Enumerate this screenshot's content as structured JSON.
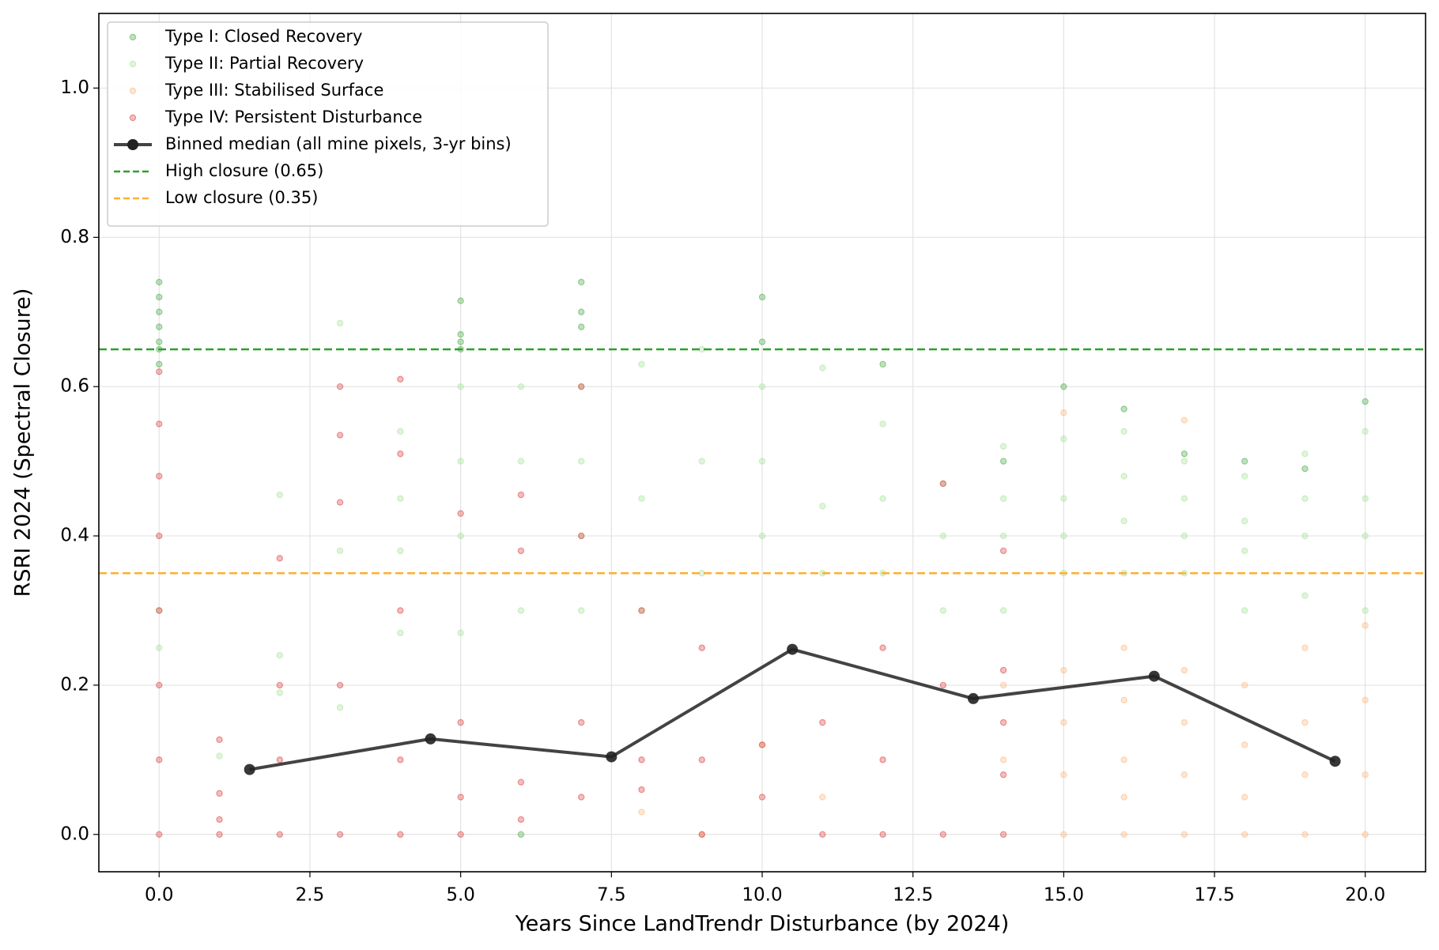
{
  "chart_data": {
    "type": "scatter",
    "xlabel": "Years Since LandTrendr Disturbance (by 2024)",
    "ylabel": "RSRI 2024 (Spectral Closure)",
    "xlim": [
      -1,
      21
    ],
    "ylim": [
      -0.05,
      1.1
    ],
    "xticks": [
      {
        "value": 0,
        "label": "0.0"
      },
      2.5,
      {
        "value": 5,
        "label": "5.0"
      },
      7.5,
      {
        "value": 10,
        "label": "10.0"
      },
      12.5,
      {
        "value": 15,
        "label": "15.0"
      },
      17.5,
      {
        "value": 20,
        "label": "20.0"
      }
    ],
    "yticks": [
      {
        "value": 0,
        "label": "0.0"
      },
      0.2,
      0.4,
      0.6,
      0.8,
      {
        "value": 1,
        "label": "1.0"
      }
    ],
    "grid": true,
    "legend": "upper left",
    "series": [
      {
        "name": "Type I: Closed Recovery",
        "type": "scatter",
        "color": "#2ca02c",
        "x": [
          0,
          0,
          0,
          0,
          0,
          0,
          0,
          5,
          5,
          5,
          5,
          6,
          7,
          7,
          7,
          10,
          10,
          12,
          14,
          15,
          16,
          17,
          18,
          19,
          20
        ],
        "y": [
          0.74,
          0.72,
          0.7,
          0.68,
          0.66,
          0.65,
          0.63,
          0.715,
          0.67,
          0.66,
          0.65,
          0.0,
          0.74,
          0.7,
          0.68,
          0.72,
          0.66,
          0.63,
          0.5,
          0.6,
          0.57,
          0.51,
          0.5,
          0.49,
          0.58
        ]
      },
      {
        "name": "Type II: Partial Recovery",
        "type": "scatter",
        "color": "#98df8a",
        "x": [
          0,
          0,
          1,
          2,
          2,
          2,
          3,
          3,
          3,
          4,
          4,
          4,
          4,
          5,
          5,
          5,
          5,
          6,
          6,
          6,
          7,
          7,
          7,
          7,
          8,
          8,
          8,
          9,
          9,
          9,
          10,
          10,
          10,
          11,
          11,
          11,
          12,
          12,
          12,
          13,
          13,
          13,
          14,
          14,
          14,
          14,
          15,
          15,
          15,
          15,
          16,
          16,
          16,
          16,
          17,
          17,
          17,
          17,
          18,
          18,
          18,
          18,
          19,
          19,
          19,
          19,
          20,
          20,
          20,
          20
        ],
        "y": [
          0.3,
          0.25,
          0.105,
          0.455,
          0.24,
          0.19,
          0.685,
          0.38,
          0.17,
          0.54,
          0.45,
          0.38,
          0.27,
          0.6,
          0.5,
          0.4,
          0.27,
          0.6,
          0.5,
          0.3,
          0.6,
          0.5,
          0.4,
          0.3,
          0.63,
          0.45,
          0.3,
          0.65,
          0.5,
          0.35,
          0.6,
          0.5,
          0.4,
          0.625,
          0.44,
          0.35,
          0.55,
          0.45,
          0.35,
          0.47,
          0.4,
          0.3,
          0.52,
          0.45,
          0.4,
          0.3,
          0.53,
          0.45,
          0.4,
          0.35,
          0.54,
          0.48,
          0.42,
          0.35,
          0.5,
          0.45,
          0.4,
          0.35,
          0.48,
          0.42,
          0.38,
          0.3,
          0.51,
          0.45,
          0.4,
          0.32,
          0.54,
          0.45,
          0.4,
          0.3
        ]
      },
      {
        "name": "Type III: Stabilised Surface",
        "type": "scatter",
        "color": "#fdae6b",
        "x": [
          8,
          9,
          10,
          11,
          14,
          14,
          15,
          15,
          15,
          15,
          15,
          16,
          16,
          16,
          16,
          16,
          17,
          17,
          17,
          17,
          17,
          18,
          18,
          18,
          18,
          19,
          19,
          19,
          19,
          20,
          20,
          20,
          20
        ],
        "y": [
          0.03,
          0.0,
          0.12,
          0.05,
          0.2,
          0.1,
          0.565,
          0.22,
          0.15,
          0.08,
          0.0,
          0.25,
          0.18,
          0.1,
          0.05,
          0.0,
          0.555,
          0.22,
          0.15,
          0.08,
          0.0,
          0.2,
          0.12,
          0.05,
          0.0,
          0.25,
          0.15,
          0.08,
          0.0,
          0.28,
          0.18,
          0.08,
          0.0
        ]
      },
      {
        "name": "Type IV: Persistent Disturbance",
        "type": "scatter",
        "color": "#d62728",
        "x": [
          0,
          0,
          0,
          0,
          0,
          0,
          0,
          0,
          1,
          1,
          1,
          1,
          2,
          2,
          2,
          2,
          3,
          3,
          3,
          3,
          3,
          4,
          4,
          4,
          4,
          4,
          5,
          5,
          5,
          5,
          6,
          6,
          6,
          6,
          7,
          7,
          7,
          7,
          8,
          8,
          8,
          9,
          9,
          9,
          10,
          10,
          11,
          11,
          12,
          12,
          12,
          13,
          13,
          13,
          14,
          14,
          14,
          14,
          14
        ],
        "y": [
          0.62,
          0.55,
          0.48,
          0.4,
          0.3,
          0.2,
          0.1,
          0.0,
          0.127,
          0.055,
          0.02,
          0.0,
          0.37,
          0.2,
          0.1,
          0.0,
          0.6,
          0.535,
          0.445,
          0.2,
          0.0,
          0.61,
          0.51,
          0.3,
          0.1,
          0.0,
          0.43,
          0.15,
          0.05,
          0.0,
          0.455,
          0.38,
          0.07,
          0.02,
          0.6,
          0.4,
          0.15,
          0.05,
          0.3,
          0.1,
          0.06,
          0.25,
          0.1,
          0.0,
          0.12,
          0.05,
          0.15,
          0.0,
          0.25,
          0.1,
          0.0,
          0.47,
          0.2,
          0.0,
          0.38,
          0.22,
          0.15,
          0.08,
          0.0
        ]
      },
      {
        "name": "Binned median (all mine pixels, 3-yr bins)",
        "type": "line",
        "color": "#222222",
        "x": [
          1.5,
          4.5,
          7.5,
          10.5,
          13.5,
          16.5,
          19.5
        ],
        "y": [
          0.087,
          0.128,
          0.104,
          0.248,
          0.182,
          0.212,
          0.098
        ]
      }
    ],
    "hlines": [
      {
        "name": "High closure (0.65)",
        "value": 0.65,
        "color": "#2ca02c"
      },
      {
        "name": "Low closure (0.35)",
        "value": 0.35,
        "color": "#fbb034"
      }
    ]
  }
}
